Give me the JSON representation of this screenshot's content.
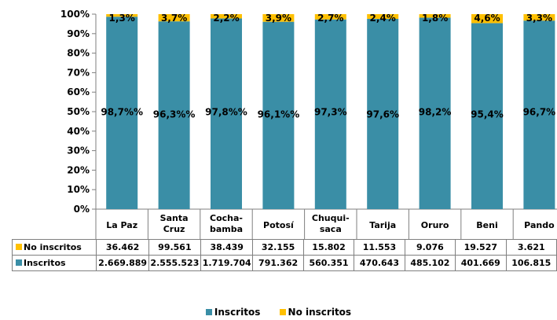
{
  "chart_data": {
    "type": "bar",
    "stacked": true,
    "percent_stacked": true,
    "categories": [
      "La Paz",
      "Santa Cruz",
      "Cocha-bamba",
      "Potosí",
      "Chuqui-saca",
      "Tarija",
      "Oruro",
      "Beni",
      "Pando"
    ],
    "categories_display": [
      [
        "La Paz"
      ],
      [
        "Santa",
        "Cruz"
      ],
      [
        "Cocha-",
        "bamba"
      ],
      [
        "Potosí"
      ],
      [
        "Chuqui-",
        "saca"
      ],
      [
        "Tarija"
      ],
      [
        "Oruro"
      ],
      [
        "Beni"
      ],
      [
        "Pando"
      ]
    ],
    "y_ticks": [
      "0%",
      "10%",
      "20%",
      "30%",
      "40%",
      "50%",
      "60%",
      "70%",
      "80%",
      "90%",
      "100%"
    ],
    "ylim": [
      0,
      100
    ],
    "grid": false,
    "legend_position": "bottom",
    "series": [
      {
        "name": "Inscritos",
        "color": "#3a8ea6",
        "percent": [
          98.7,
          96.3,
          97.8,
          96.1,
          97.3,
          97.6,
          98.2,
          95.4,
          96.7
        ],
        "percent_labels": [
          "98,7%%",
          "96,3%%",
          "97,8%%",
          "96,1%%",
          "97,3%",
          "97,6%",
          "98,2%",
          "95,4%",
          "96,7%"
        ],
        "table_values": [
          "2.669.889",
          "2.555.523",
          "1.719.704",
          "791.362",
          "560.351",
          "470.643",
          "485.102",
          "401.669",
          "106.815"
        ]
      },
      {
        "name": "No inscritos",
        "color": "#ffc000",
        "percent": [
          1.3,
          3.7,
          2.2,
          3.9,
          2.7,
          2.4,
          1.8,
          4.6,
          3.3
        ],
        "percent_labels": [
          "1,3%",
          "3,7%",
          "2,2%",
          "3,9%",
          "2,7%",
          "2,4%",
          "1,8%",
          "4,6%",
          "3,3%"
        ],
        "table_values": [
          "36.462",
          "99.561",
          "38.439",
          "32.155",
          "15.802",
          "11.553",
          "9.076",
          "19.527",
          "3.621"
        ]
      }
    ]
  }
}
